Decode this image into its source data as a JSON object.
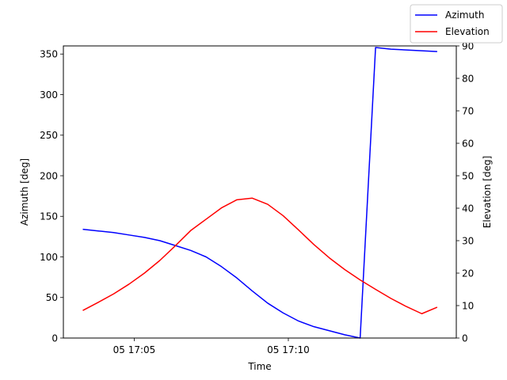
{
  "chart_data": {
    "type": "line",
    "xlabel": "Time",
    "ylabel": "Azimuth [deg]",
    "y2label": "Elevation [deg]",
    "x_ticks": [
      {
        "value": 5,
        "label": "05 17:05"
      },
      {
        "value": 10,
        "label": "05 17:10"
      }
    ],
    "xlim": [
      2.7,
      15.45
    ],
    "ylim": [
      0,
      360
    ],
    "y2lim": [
      0,
      90
    ],
    "y_ticks": [
      0,
      50,
      100,
      150,
      200,
      250,
      300,
      350
    ],
    "y2_ticks": [
      0,
      10,
      20,
      30,
      40,
      50,
      60,
      70,
      80,
      90
    ],
    "legend_position": "top-right",
    "x": [
      3.33,
      3.83,
      4.33,
      4.83,
      5.33,
      5.83,
      6.33,
      6.83,
      7.33,
      7.83,
      8.33,
      8.83,
      9.33,
      9.83,
      10.33,
      10.83,
      11.33,
      11.83,
      12.33,
      12.83,
      13.33,
      13.83,
      14.33,
      14.83
    ],
    "series": [
      {
        "name": "Azimuth",
        "axis": "left",
        "color": "#0000ff",
        "x": [
          3.33,
          3.83,
          4.33,
          4.83,
          5.33,
          5.83,
          6.33,
          6.83,
          7.33,
          7.83,
          8.33,
          8.83,
          9.33,
          9.83,
          10.33,
          10.83,
          11.33,
          11.83,
          12.33,
          12.83,
          13.33,
          13.83,
          14.33,
          14.83
        ],
        "values": [
          134,
          132,
          130,
          127,
          124,
          120,
          114,
          108,
          100,
          88,
          74,
          58,
          43,
          31,
          21,
          14,
          9,
          4,
          0,
          358,
          356,
          355,
          354,
          353
        ]
      },
      {
        "name": "Elevation",
        "axis": "right",
        "color": "#ff0000",
        "x": [
          3.33,
          3.83,
          4.33,
          4.83,
          5.33,
          5.83,
          6.33,
          6.83,
          7.33,
          7.83,
          8.33,
          8.83,
          9.33,
          9.83,
          10.33,
          10.83,
          11.33,
          11.83,
          12.33,
          12.83,
          13.33,
          13.83,
          14.33,
          14.83
        ],
        "values": [
          8.5,
          11,
          13.6,
          16.6,
          20,
          23.9,
          28.4,
          33.1,
          36.6,
          40.1,
          42.6,
          43.1,
          41.2,
          37.7,
          33.3,
          28.8,
          24.7,
          21.1,
          17.9,
          15,
          12.2,
          9.7,
          7.5,
          9.5
        ]
      }
    ]
  }
}
